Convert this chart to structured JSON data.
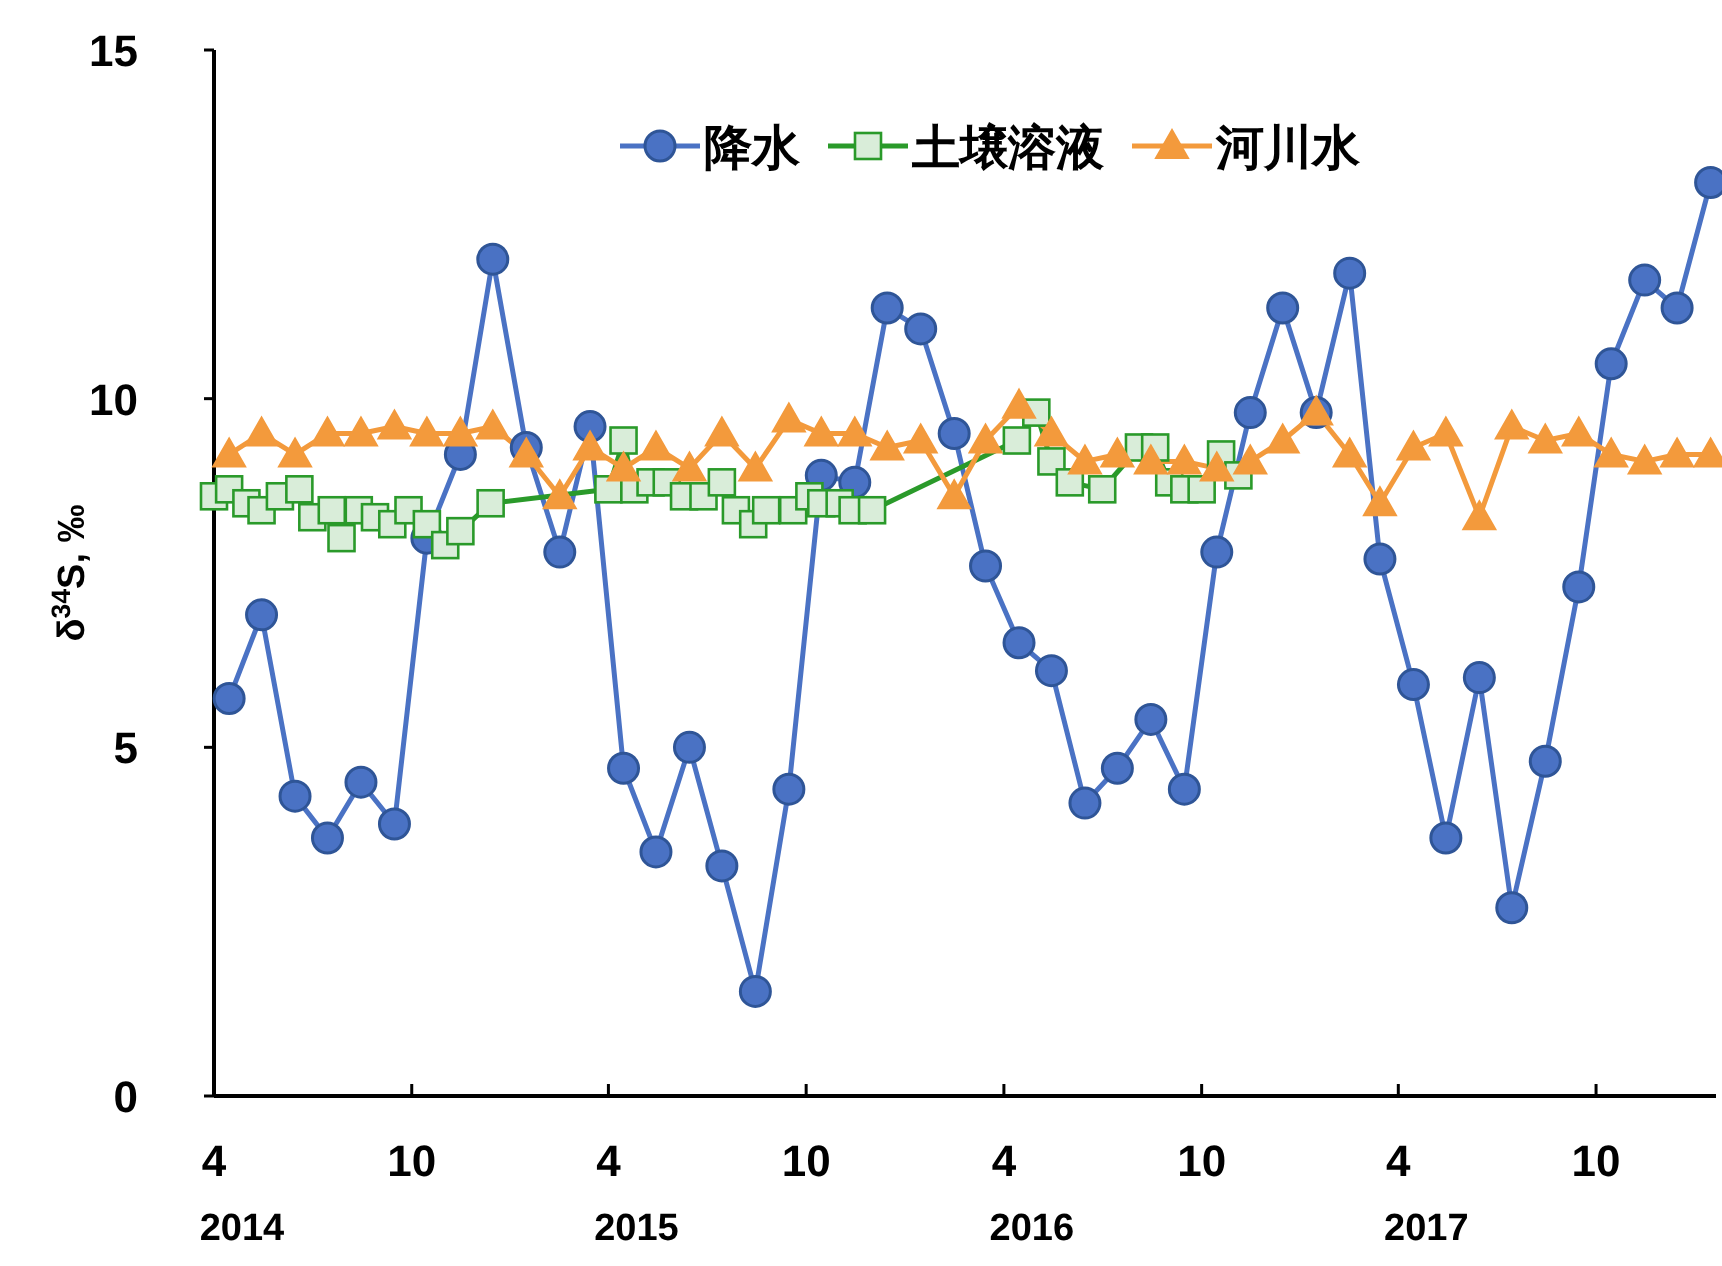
{
  "chart_data": {
    "type": "line",
    "ylabel": "δ$^{34}$S, ‰",
    "xlim": [
      "2014-04-01",
      "2018-01-20"
    ],
    "ylim": [
      0,
      15
    ],
    "yticks": [
      0,
      5,
      10,
      15
    ],
    "xticks": [
      {
        "value": "2014-04",
        "label": "4"
      },
      {
        "value": "2014-10",
        "label": "10"
      },
      {
        "value": "2015-04",
        "label": "4"
      },
      {
        "value": "2015-10",
        "label": "10"
      },
      {
        "value": "2016-04",
        "label": "4"
      },
      {
        "value": "2016-10",
        "label": "10"
      },
      {
        "value": "2017-04",
        "label": "4"
      },
      {
        "value": "2017-10",
        "label": "10"
      }
    ],
    "annotations": [
      "2014",
      "2015",
      "2016",
      "2017"
    ],
    "grid": false,
    "legend": "top",
    "line_style": "solid",
    "x": [
      "2014-04-15",
      "2014-05-15",
      "2014-06-15",
      "2014-07-15",
      "2014-08-15",
      "2014-09-15",
      "2014-10-15",
      "2014-11-15",
      "2014-12-15",
      "2015-01-15",
      "2015-02-15",
      "2015-03-15",
      "2015-04-15",
      "2015-05-15",
      "2015-06-15",
      "2015-07-15",
      "2015-08-15",
      "2015-09-15",
      "2015-10-15",
      "2015-11-15",
      "2015-12-15",
      "2016-01-15",
      "2016-02-15",
      "2016-03-15",
      "2016-04-15",
      "2016-05-15",
      "2016-06-15",
      "2016-07-15",
      "2016-08-15",
      "2016-09-15",
      "2016-10-15",
      "2016-11-15",
      "2016-12-15",
      "2017-01-15",
      "2017-02-15",
      "2017-03-15",
      "2017-04-15",
      "2017-05-15",
      "2017-06-15",
      "2017-07-15",
      "2017-08-15",
      "2017-09-15",
      "2017-10-15",
      "2017-11-15",
      "2017-12-15",
      "2018-01-15"
    ],
    "series": [
      {
        "name": "降水",
        "color": "#4a72c4",
        "marker": "circle",
        "values": [
          5.7,
          6.9,
          4.3,
          3.7,
          4.5,
          3.9,
          8.0,
          9.2,
          12.0,
          9.3,
          7.8,
          9.6,
          4.7,
          3.5,
          5.0,
          3.3,
          1.5,
          4.4,
          8.9,
          8.8,
          11.3,
          11.0,
          9.5,
          7.6,
          6.5,
          6.1,
          4.2,
          4.7,
          5.4,
          4.4,
          7.8,
          9.8,
          11.3,
          9.8,
          11.8,
          7.7,
          5.9,
          3.7,
          6.0,
          2.7,
          4.8,
          7.3,
          10.5,
          11.7,
          11.3,
          13.1
        ]
      },
      {
        "name": "土壌溶液",
        "color": "#2a9a2a",
        "marker": "square",
        "x": [
          "2014-04-01",
          "2014-04-15",
          "2014-05-01",
          "2014-05-15",
          "2014-06-01",
          "2014-06-19",
          "2014-07-01",
          "2014-07-19",
          "2014-07-28",
          "2014-08-13",
          "2014-08-28",
          "2014-09-13",
          "2014-09-28",
          "2014-10-15",
          "2014-11-01",
          "2014-11-15",
          "2014-12-13",
          "2015-04-01",
          "2015-04-15",
          "2015-04-25",
          "2015-05-10",
          "2015-05-25",
          "2015-06-10",
          "2015-06-28",
          "2015-07-15",
          "2015-07-28",
          "2015-08-13",
          "2015-08-25",
          "2015-09-19",
          "2015-10-04",
          "2015-10-15",
          "2015-11-01",
          "2015-11-13",
          "2015-12-01",
          "2016-04-13",
          "2016-05-01",
          "2016-05-15",
          "2016-06-01",
          "2016-07-01",
          "2016-08-04",
          "2016-08-19",
          "2016-09-01",
          "2016-09-15",
          "2016-10-01",
          "2016-10-19",
          "2016-11-04"
        ],
        "values": [
          8.6,
          8.7,
          8.5,
          8.4,
          8.6,
          8.7,
          8.3,
          8.4,
          8.0,
          8.4,
          8.3,
          8.2,
          8.4,
          8.2,
          7.9,
          8.1,
          8.5,
          8.7,
          9.4,
          8.7,
          8.8,
          8.8,
          8.6,
          8.6,
          8.8,
          8.4,
          8.2,
          8.4,
          8.4,
          8.6,
          8.5,
          8.5,
          8.4,
          8.4,
          9.4,
          9.8,
          9.1,
          8.8,
          8.7,
          9.3,
          9.3,
          8.8,
          8.7,
          8.7,
          9.2,
          8.9
        ]
      },
      {
        "name": "河川水",
        "color": "#f39a3c",
        "marker": "triangle",
        "values": [
          9.2,
          9.5,
          9.2,
          9.5,
          9.5,
          9.6,
          9.5,
          9.5,
          9.6,
          9.2,
          8.6,
          9.3,
          9.0,
          9.3,
          9.0,
          9.5,
          9.0,
          9.7,
          9.5,
          9.5,
          9.3,
          9.4,
          8.6,
          9.4,
          9.9,
          9.5,
          9.1,
          9.2,
          9.1,
          9.1,
          9.0,
          9.1,
          9.4,
          9.8,
          9.2,
          8.5,
          9.3,
          9.5,
          8.3,
          9.6,
          9.4,
          9.5,
          9.2,
          9.1,
          9.2,
          9.2
        ]
      }
    ]
  }
}
